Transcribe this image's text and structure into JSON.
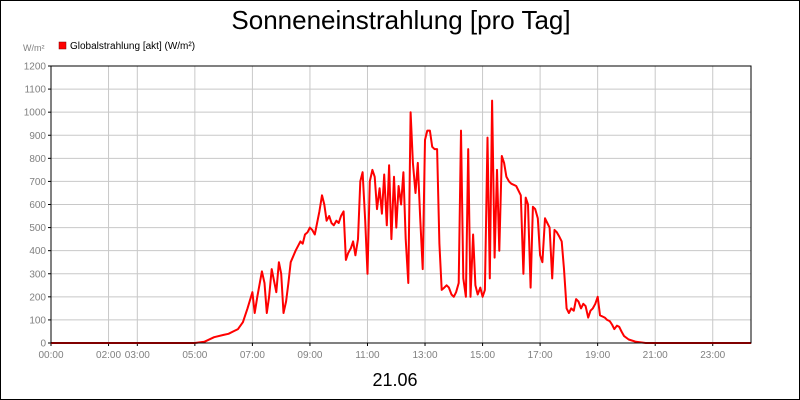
{
  "chart_data": {
    "type": "line",
    "title": "Sonneneinstrahlung [pro Tag]",
    "ylabel": "W/m²",
    "xlabel": "21.06",
    "ylim": [
      0,
      1200
    ],
    "xlim": [
      0,
      24.33
    ],
    "grid": true,
    "legend_position": "top-left",
    "y_ticks": [
      0,
      100,
      200,
      300,
      400,
      500,
      600,
      700,
      800,
      900,
      1000,
      1100,
      1200
    ],
    "x_ticks": [
      {
        "x": 0,
        "label": "00:00"
      },
      {
        "x": 2,
        "label": "02:00"
      },
      {
        "x": 3,
        "label": "03:00"
      },
      {
        "x": 5,
        "label": "05:00"
      },
      {
        "x": 7,
        "label": "07:00"
      },
      {
        "x": 9,
        "label": "09:00"
      },
      {
        "x": 11,
        "label": "11:00"
      },
      {
        "x": 13,
        "label": "13:00"
      },
      {
        "x": 15,
        "label": "15:00"
      },
      {
        "x": 17,
        "label": "17:00"
      },
      {
        "x": 19,
        "label": "19:00"
      },
      {
        "x": 21,
        "label": "21:00"
      },
      {
        "x": 23,
        "label": "23:00"
      }
    ],
    "series": [
      {
        "name": "Globalstrahlung [akt] (W/m²)",
        "color": "#ff0000",
        "points": [
          [
            0.0,
            0
          ],
          [
            5.0,
            0
          ],
          [
            5.33,
            5
          ],
          [
            5.67,
            25
          ],
          [
            6.0,
            35
          ],
          [
            6.17,
            40
          ],
          [
            6.33,
            50
          ],
          [
            6.5,
            60
          ],
          [
            6.67,
            90
          ],
          [
            6.83,
            150
          ],
          [
            7.0,
            220
          ],
          [
            7.08,
            130
          ],
          [
            7.17,
            200
          ],
          [
            7.33,
            310
          ],
          [
            7.42,
            260
          ],
          [
            7.5,
            130
          ],
          [
            7.58,
            200
          ],
          [
            7.67,
            320
          ],
          [
            7.75,
            270
          ],
          [
            7.83,
            220
          ],
          [
            7.92,
            350
          ],
          [
            8.0,
            300
          ],
          [
            8.08,
            130
          ],
          [
            8.17,
            180
          ],
          [
            8.25,
            260
          ],
          [
            8.33,
            350
          ],
          [
            8.5,
            400
          ],
          [
            8.67,
            440
          ],
          [
            8.75,
            430
          ],
          [
            8.83,
            470
          ],
          [
            8.92,
            480
          ],
          [
            9.0,
            500
          ],
          [
            9.08,
            490
          ],
          [
            9.17,
            470
          ],
          [
            9.25,
            520
          ],
          [
            9.33,
            570
          ],
          [
            9.42,
            640
          ],
          [
            9.5,
            600
          ],
          [
            9.58,
            530
          ],
          [
            9.67,
            550
          ],
          [
            9.75,
            520
          ],
          [
            9.83,
            510
          ],
          [
            9.92,
            530
          ],
          [
            10.0,
            520
          ],
          [
            10.08,
            550
          ],
          [
            10.17,
            570
          ],
          [
            10.25,
            360
          ],
          [
            10.33,
            390
          ],
          [
            10.42,
            410
          ],
          [
            10.5,
            440
          ],
          [
            10.58,
            380
          ],
          [
            10.67,
            450
          ],
          [
            10.75,
            700
          ],
          [
            10.83,
            740
          ],
          [
            10.92,
            530
          ],
          [
            11.0,
            300
          ],
          [
            11.08,
            700
          ],
          [
            11.17,
            750
          ],
          [
            11.25,
            720
          ],
          [
            11.33,
            580
          ],
          [
            11.42,
            670
          ],
          [
            11.5,
            560
          ],
          [
            11.58,
            730
          ],
          [
            11.67,
            510
          ],
          [
            11.75,
            770
          ],
          [
            11.83,
            450
          ],
          [
            11.92,
            720
          ],
          [
            12.0,
            500
          ],
          [
            12.08,
            680
          ],
          [
            12.17,
            600
          ],
          [
            12.25,
            740
          ],
          [
            12.33,
            450
          ],
          [
            12.42,
            260
          ],
          [
            12.5,
            1000
          ],
          [
            12.58,
            780
          ],
          [
            12.67,
            650
          ],
          [
            12.75,
            780
          ],
          [
            12.83,
            550
          ],
          [
            12.92,
            320
          ],
          [
            13.0,
            880
          ],
          [
            13.08,
            920
          ],
          [
            13.17,
            920
          ],
          [
            13.25,
            850
          ],
          [
            13.33,
            840
          ],
          [
            13.42,
            840
          ],
          [
            13.5,
            430
          ],
          [
            13.58,
            230
          ],
          [
            13.67,
            240
          ],
          [
            13.75,
            250
          ],
          [
            13.83,
            240
          ],
          [
            13.92,
            210
          ],
          [
            14.0,
            200
          ],
          [
            14.08,
            220
          ],
          [
            14.17,
            260
          ],
          [
            14.25,
            920
          ],
          [
            14.33,
            280
          ],
          [
            14.42,
            200
          ],
          [
            14.5,
            840
          ],
          [
            14.58,
            200
          ],
          [
            14.67,
            470
          ],
          [
            14.75,
            250
          ],
          [
            14.83,
            210
          ],
          [
            14.92,
            240
          ],
          [
            15.0,
            200
          ],
          [
            15.08,
            230
          ],
          [
            15.17,
            890
          ],
          [
            15.25,
            280
          ],
          [
            15.33,
            1050
          ],
          [
            15.42,
            370
          ],
          [
            15.5,
            750
          ],
          [
            15.58,
            400
          ],
          [
            15.67,
            810
          ],
          [
            15.75,
            780
          ],
          [
            15.83,
            720
          ],
          [
            15.92,
            700
          ],
          [
            16.0,
            690
          ],
          [
            16.17,
            680
          ],
          [
            16.33,
            640
          ],
          [
            16.42,
            300
          ],
          [
            16.5,
            630
          ],
          [
            16.58,
            600
          ],
          [
            16.67,
            240
          ],
          [
            16.75,
            590
          ],
          [
            16.83,
            580
          ],
          [
            16.92,
            540
          ],
          [
            17.0,
            380
          ],
          [
            17.08,
            350
          ],
          [
            17.17,
            540
          ],
          [
            17.25,
            520
          ],
          [
            17.33,
            500
          ],
          [
            17.42,
            280
          ],
          [
            17.5,
            490
          ],
          [
            17.58,
            480
          ],
          [
            17.67,
            460
          ],
          [
            17.75,
            440
          ],
          [
            17.83,
            320
          ],
          [
            17.92,
            150
          ],
          [
            18.0,
            130
          ],
          [
            18.08,
            150
          ],
          [
            18.17,
            140
          ],
          [
            18.25,
            190
          ],
          [
            18.33,
            180
          ],
          [
            18.42,
            150
          ],
          [
            18.5,
            170
          ],
          [
            18.58,
            160
          ],
          [
            18.67,
            110
          ],
          [
            18.75,
            140
          ],
          [
            18.83,
            150
          ],
          [
            18.92,
            170
          ],
          [
            19.0,
            200
          ],
          [
            19.08,
            120
          ],
          [
            19.17,
            115
          ],
          [
            19.25,
            110
          ],
          [
            19.33,
            100
          ],
          [
            19.42,
            95
          ],
          [
            19.5,
            80
          ],
          [
            19.58,
            60
          ],
          [
            19.67,
            75
          ],
          [
            19.75,
            70
          ],
          [
            19.83,
            50
          ],
          [
            19.92,
            30
          ],
          [
            20.08,
            15
          ],
          [
            20.33,
            5
          ],
          [
            20.67,
            0
          ],
          [
            24.33,
            0
          ]
        ]
      }
    ],
    "date_label": "21.06"
  },
  "colors": {
    "line": "#ff0000",
    "grid": "#c8c8c8",
    "axis_text": "#808080",
    "frame": "#000000",
    "background": "#ffffff"
  }
}
